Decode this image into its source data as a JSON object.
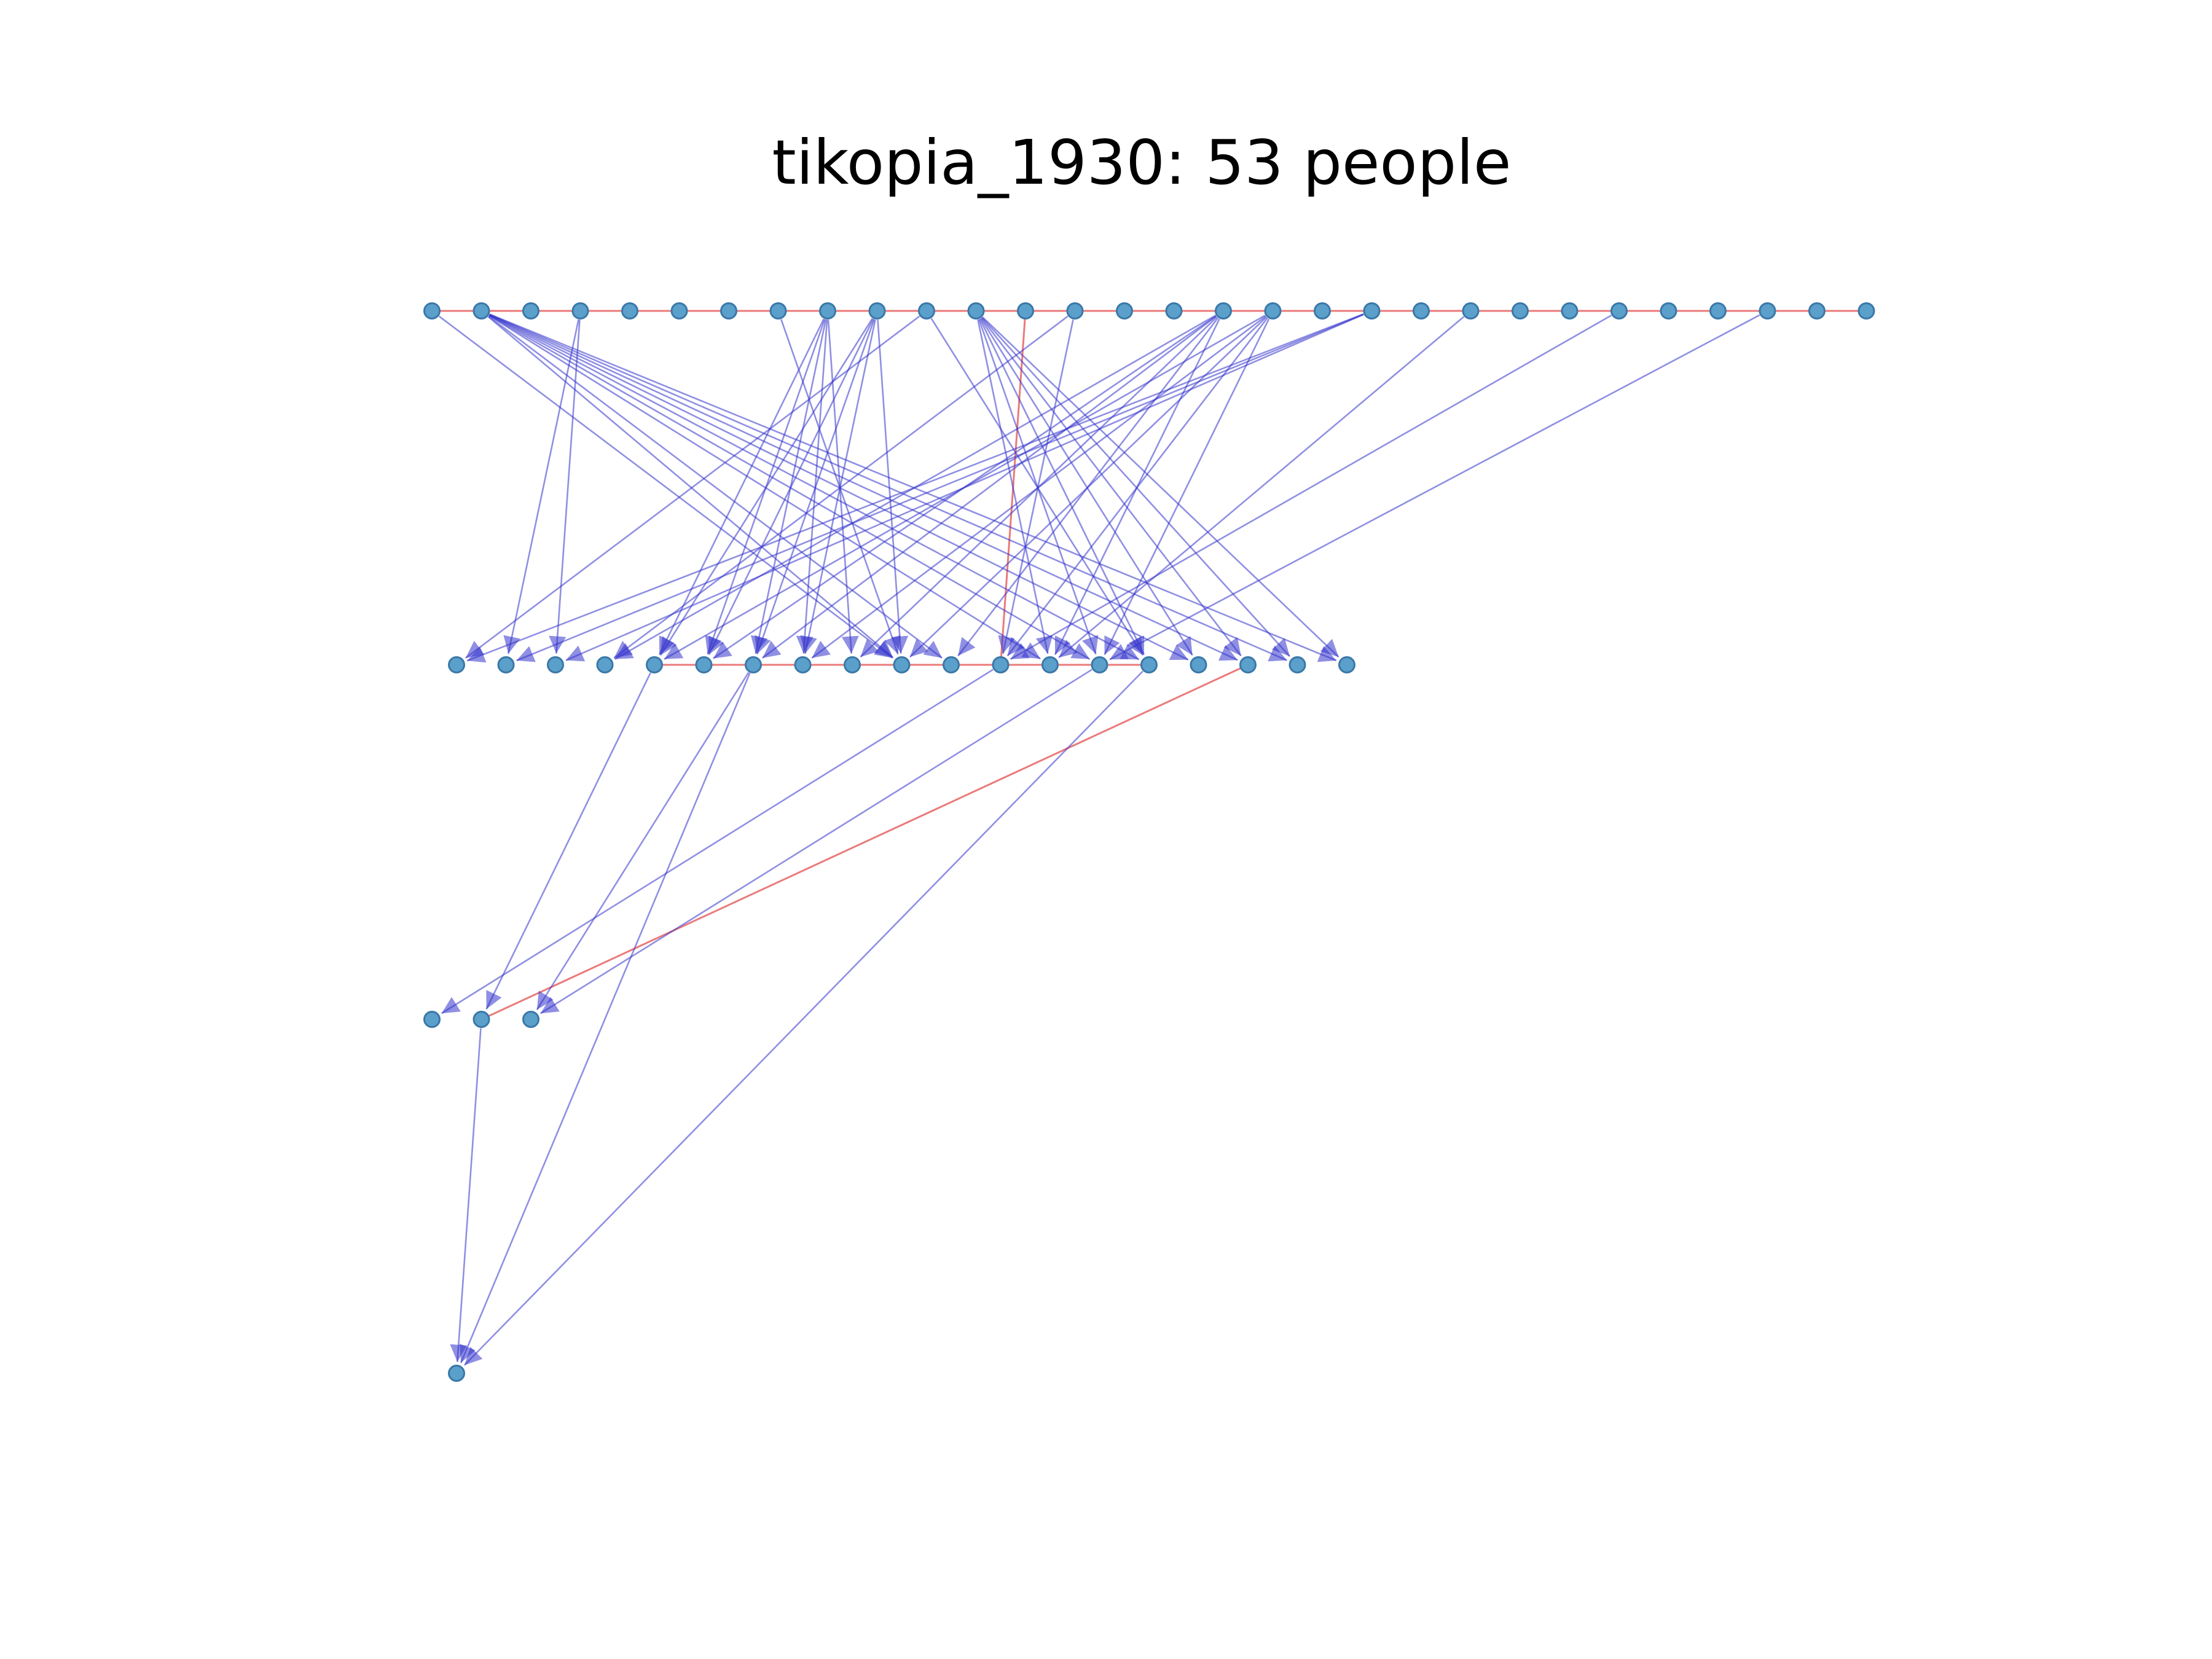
{
  "title": "tikopia_1930: 53 people",
  "colors": {
    "node_fill": "#5b9fcb",
    "node_stroke": "#3a78a8",
    "parent_edge": "#3333cc",
    "spouse_edge": "#dd2222",
    "background": "#ffffff"
  },
  "generations": [
    {
      "level": 0,
      "count": 30
    },
    {
      "level": 1,
      "count": 19
    },
    {
      "level": 2,
      "count": 3
    },
    {
      "level": 3,
      "count": 1
    }
  ],
  "spouse_links": [
    [
      [
        0,
        0
      ],
      [
        0,
        29
      ]
    ],
    [
      [
        1,
        4
      ],
      [
        1,
        14
      ]
    ],
    [
      [
        0,
        12
      ],
      [
        1,
        11
      ]
    ],
    [
      [
        2,
        1
      ],
      [
        1,
        16
      ]
    ]
  ],
  "parent_links": [
    [
      [
        0,
        0
      ],
      [
        1,
        9
      ]
    ],
    [
      [
        0,
        1
      ],
      [
        1,
        9
      ]
    ],
    [
      [
        0,
        1
      ],
      [
        1,
        10
      ]
    ],
    [
      [
        0,
        1
      ],
      [
        1,
        12
      ]
    ],
    [
      [
        0,
        1
      ],
      [
        1,
        13
      ]
    ],
    [
      [
        0,
        1
      ],
      [
        1,
        14
      ]
    ],
    [
      [
        0,
        1
      ],
      [
        1,
        15
      ]
    ],
    [
      [
        0,
        1
      ],
      [
        1,
        16
      ]
    ],
    [
      [
        0,
        1
      ],
      [
        1,
        17
      ]
    ],
    [
      [
        0,
        1
      ],
      [
        1,
        18
      ]
    ],
    [
      [
        0,
        3
      ],
      [
        1,
        1
      ]
    ],
    [
      [
        0,
        3
      ],
      [
        1,
        2
      ]
    ],
    [
      [
        0,
        7
      ],
      [
        1,
        9
      ]
    ],
    [
      [
        0,
        8
      ],
      [
        1,
        4
      ]
    ],
    [
      [
        0,
        8
      ],
      [
        1,
        5
      ]
    ],
    [
      [
        0,
        8
      ],
      [
        1,
        6
      ]
    ],
    [
      [
        0,
        8
      ],
      [
        1,
        7
      ]
    ],
    [
      [
        0,
        8
      ],
      [
        1,
        8
      ]
    ],
    [
      [
        0,
        9
      ],
      [
        1,
        4
      ]
    ],
    [
      [
        0,
        9
      ],
      [
        1,
        5
      ]
    ],
    [
      [
        0,
        9
      ],
      [
        1,
        6
      ]
    ],
    [
      [
        0,
        9
      ],
      [
        1,
        7
      ]
    ],
    [
      [
        0,
        9
      ],
      [
        1,
        9
      ]
    ],
    [
      [
        0,
        10
      ],
      [
        1,
        0
      ]
    ],
    [
      [
        0,
        10
      ],
      [
        1,
        14
      ]
    ],
    [
      [
        0,
        11
      ],
      [
        1,
        12
      ]
    ],
    [
      [
        0,
        11
      ],
      [
        1,
        13
      ]
    ],
    [
      [
        0,
        11
      ],
      [
        1,
        14
      ]
    ],
    [
      [
        0,
        11
      ],
      [
        1,
        15
      ]
    ],
    [
      [
        0,
        11
      ],
      [
        1,
        16
      ]
    ],
    [
      [
        0,
        11
      ],
      [
        1,
        17
      ]
    ],
    [
      [
        0,
        11
      ],
      [
        1,
        18
      ]
    ],
    [
      [
        0,
        13
      ],
      [
        1,
        3
      ]
    ],
    [
      [
        0,
        13
      ],
      [
        1,
        11
      ]
    ],
    [
      [
        0,
        16
      ],
      [
        1,
        3
      ]
    ],
    [
      [
        0,
        16
      ],
      [
        1,
        5
      ]
    ],
    [
      [
        0,
        16
      ],
      [
        1,
        6
      ]
    ],
    [
      [
        0,
        16
      ],
      [
        1,
        8
      ]
    ],
    [
      [
        0,
        16
      ],
      [
        1,
        10
      ]
    ],
    [
      [
        0,
        16
      ],
      [
        1,
        12
      ]
    ],
    [
      [
        0,
        17
      ],
      [
        1,
        4
      ]
    ],
    [
      [
        0,
        17
      ],
      [
        1,
        7
      ]
    ],
    [
      [
        0,
        17
      ],
      [
        1,
        9
      ]
    ],
    [
      [
        0,
        17
      ],
      [
        1,
        11
      ]
    ],
    [
      [
        0,
        17
      ],
      [
        1,
        13
      ]
    ],
    [
      [
        0,
        19
      ],
      [
        1,
        0
      ]
    ],
    [
      [
        0,
        19
      ],
      [
        1,
        1
      ]
    ],
    [
      [
        0,
        19
      ],
      [
        1,
        2
      ]
    ],
    [
      [
        0,
        21
      ],
      [
        1,
        12
      ]
    ],
    [
      [
        0,
        24
      ],
      [
        1,
        11
      ]
    ],
    [
      [
        0,
        27
      ],
      [
        1,
        13
      ]
    ],
    [
      [
        1,
        4
      ],
      [
        2,
        1
      ]
    ],
    [
      [
        1,
        6
      ],
      [
        2,
        2
      ]
    ],
    [
      [
        1,
        6
      ],
      [
        3,
        0
      ]
    ],
    [
      [
        1,
        11
      ],
      [
        2,
        0
      ]
    ],
    [
      [
        1,
        13
      ],
      [
        2,
        2
      ]
    ],
    [
      [
        1,
        14
      ],
      [
        3,
        0
      ]
    ],
    [
      [
        2,
        1
      ],
      [
        3,
        0
      ]
    ]
  ]
}
